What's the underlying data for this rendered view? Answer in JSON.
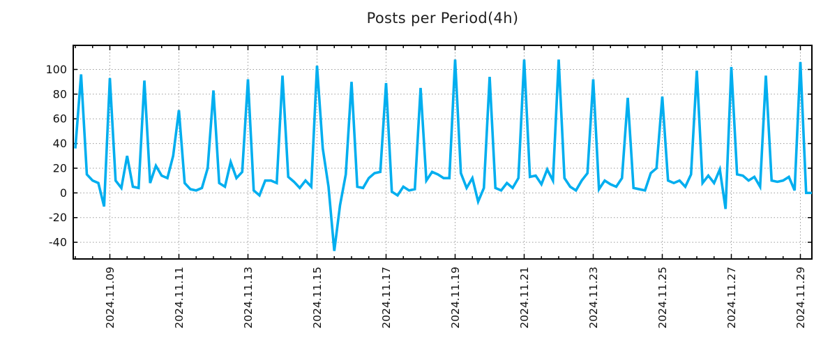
{
  "title": "Posts per Period(4h)",
  "chart_data": {
    "type": "line",
    "title": "Posts per Period(4h)",
    "xlabel": "",
    "ylabel": "",
    "legend": "none",
    "grid": true,
    "line_color": "#00AEEF",
    "start": "2024-11-08 00:00",
    "interval_hours": 4,
    "values": [
      36,
      96,
      15,
      10,
      8,
      -11,
      93,
      10,
      4,
      30,
      5,
      4,
      91,
      8,
      22,
      14,
      12,
      30,
      67,
      8,
      3,
      2,
      4,
      20,
      83,
      8,
      5,
      25,
      12,
      17,
      92,
      2,
      -2,
      10,
      10,
      8,
      95,
      13,
      9,
      4,
      10,
      5,
      103,
      36,
      5,
      -47,
      -10,
      15,
      90,
      5,
      4,
      12,
      16,
      17,
      89,
      1,
      -2,
      5,
      2,
      3,
      85,
      10,
      17,
      15,
      12,
      12,
      108,
      16,
      4,
      12,
      -7,
      4,
      94,
      4,
      2,
      8,
      4,
      12,
      108,
      13,
      14,
      7,
      19,
      10,
      108,
      12,
      5,
      2,
      10,
      16,
      92,
      3,
      10,
      7,
      5,
      12,
      77,
      4,
      3,
      2,
      16,
      20,
      78,
      10,
      8,
      10,
      5,
      15,
      99,
      8,
      14,
      8,
      19,
      -13,
      102,
      15,
      14,
      10,
      13,
      5,
      95,
      10,
      9,
      10,
      13,
      2,
      106,
      0,
      0
    ],
    "x_tick_labels": [
      "2024.11.09",
      "2024.11.11",
      "2024.11.13",
      "2024.11.15",
      "2024.11.17",
      "2024.11.19",
      "2024.11.21",
      "2024.11.23",
      "2024.11.25",
      "2024.11.27",
      "2024.11.29"
    ],
    "x_tick_indices": [
      6,
      18,
      30,
      42,
      54,
      66,
      78,
      90,
      102,
      114,
      126
    ],
    "minor_tick_every_points": 3,
    "y_ticks": [
      -40,
      -20,
      0,
      20,
      40,
      60,
      80,
      100
    ],
    "ylim": [
      -53.5,
      119.5
    ]
  }
}
